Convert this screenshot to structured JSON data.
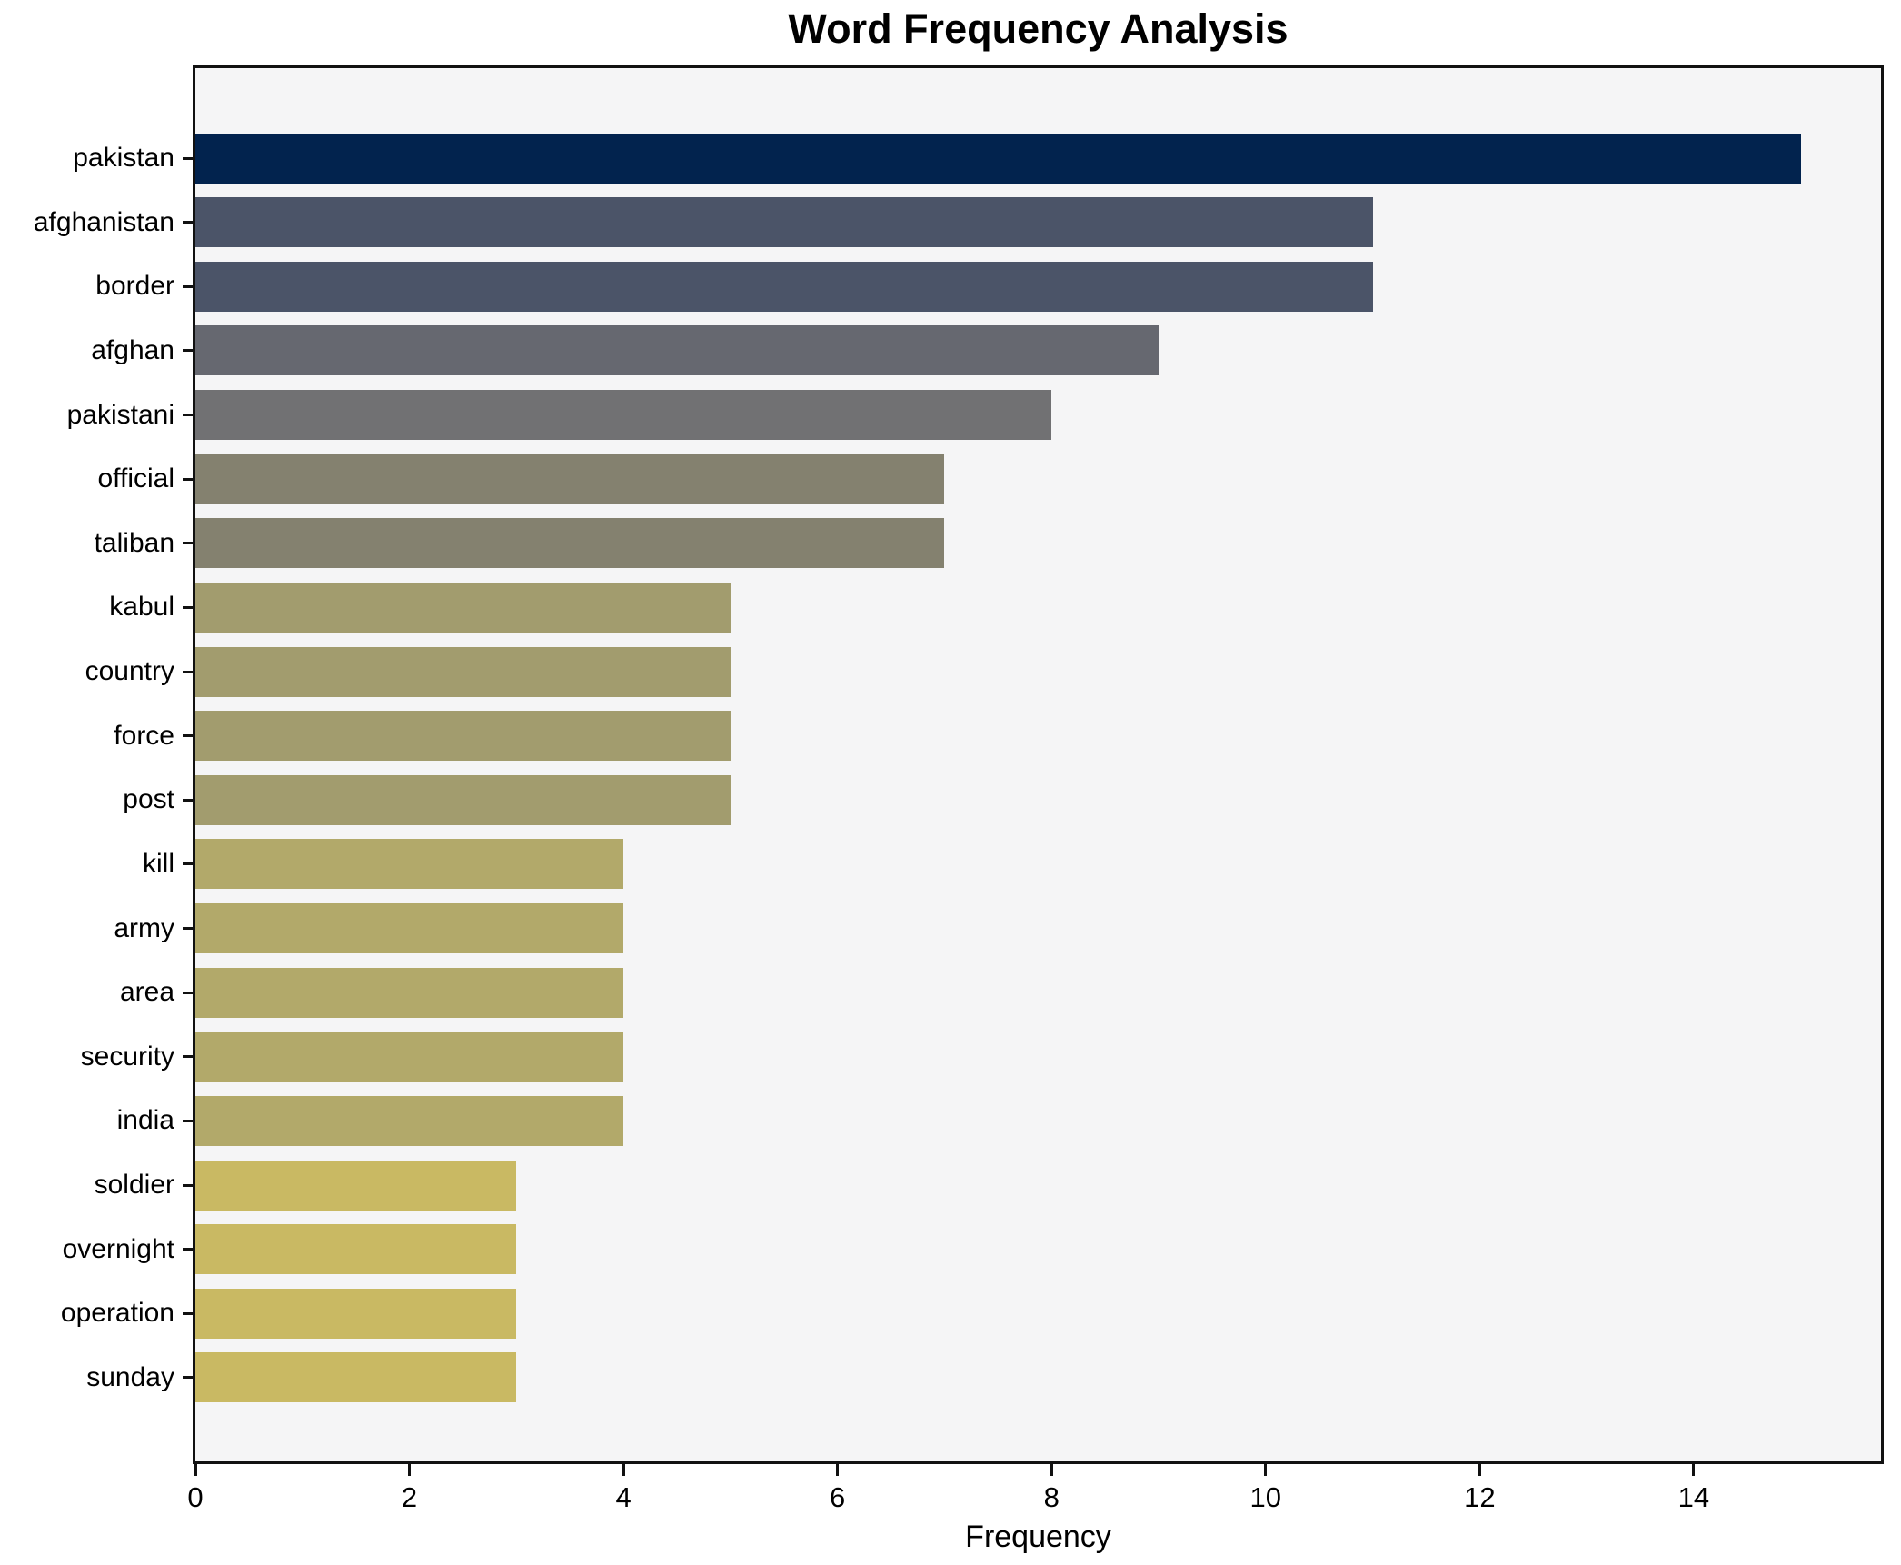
{
  "chart_data": {
    "type": "bar",
    "orientation": "horizontal",
    "title": "Word Frequency Analysis",
    "xlabel": "Frequency",
    "ylabel": "",
    "categories": [
      "pakistan",
      "afghanistan",
      "border",
      "afghan",
      "pakistani",
      "official",
      "taliban",
      "kabul",
      "country",
      "force",
      "post",
      "kill",
      "army",
      "area",
      "security",
      "india",
      "soldier",
      "overnight",
      "operation",
      "sunday"
    ],
    "values": [
      15,
      11,
      11,
      9,
      8,
      7,
      7,
      5,
      5,
      5,
      5,
      4,
      4,
      4,
      4,
      4,
      3,
      3,
      3,
      3
    ],
    "bar_colors": [
      "#02234e",
      "#4b5468",
      "#4b5468",
      "#666870",
      "#717173",
      "#84816f",
      "#84816f",
      "#a29c6e",
      "#a29c6e",
      "#a29c6e",
      "#a29c6e",
      "#b2a96a",
      "#b2a96a",
      "#b2a96a",
      "#b2a96a",
      "#b2a96a",
      "#c9b963",
      "#c9b963",
      "#c9b963",
      "#c9b963"
    ],
    "xlim": [
      0,
      15.75
    ],
    "xticks": [
      0,
      2,
      4,
      6,
      8,
      10,
      12,
      14
    ],
    "grid": false,
    "legend": "none",
    "plot_background": "#f5f5f6",
    "figure_background": "#ffffff",
    "spine_color": "#111111"
  }
}
